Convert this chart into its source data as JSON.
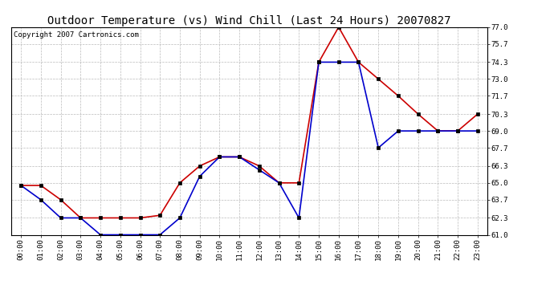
{
  "title": "Outdoor Temperature (vs) Wind Chill (Last 24 Hours) 20070827",
  "copyright_text": "Copyright 2007 Cartronics.com",
  "hours": [
    "00:00",
    "01:00",
    "02:00",
    "03:00",
    "04:00",
    "05:00",
    "06:00",
    "07:00",
    "08:00",
    "09:00",
    "10:00",
    "11:00",
    "12:00",
    "13:00",
    "14:00",
    "15:00",
    "16:00",
    "17:00",
    "18:00",
    "19:00",
    "20:00",
    "21:00",
    "22:00",
    "23:00"
  ],
  "temp": [
    64.8,
    64.8,
    63.7,
    62.3,
    62.3,
    62.3,
    62.3,
    62.5,
    65.0,
    66.3,
    67.0,
    67.0,
    66.3,
    65.0,
    65.0,
    74.3,
    77.0,
    74.3,
    73.0,
    71.7,
    70.3,
    69.0,
    69.0,
    70.3
  ],
  "windchill": [
    64.8,
    63.7,
    62.3,
    62.3,
    61.0,
    61.0,
    61.0,
    61.0,
    62.3,
    65.5,
    67.0,
    67.0,
    66.0,
    65.0,
    62.3,
    74.3,
    74.3,
    74.3,
    67.7,
    69.0,
    69.0,
    69.0,
    69.0,
    69.0
  ],
  "temp_color": "#cc0000",
  "windchill_color": "#0000cc",
  "background_color": "#ffffff",
  "grid_color": "#bbbbbb",
  "ylim": [
    61.0,
    77.0
  ],
  "yticks": [
    61.0,
    62.3,
    63.7,
    65.0,
    66.3,
    67.7,
    69.0,
    70.3,
    71.7,
    73.0,
    74.3,
    75.7,
    77.0
  ],
  "title_fontsize": 10,
  "copyright_fontsize": 6.5,
  "tick_fontsize": 6.5,
  "marker_size": 2.5,
  "linewidth": 1.2
}
